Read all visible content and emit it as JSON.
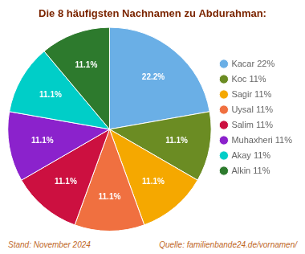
{
  "chart_data": {
    "type": "pie",
    "title": "Die 8 häufigsten Nachnamen zu Abdurahman:",
    "categories": [
      "Kacar 22%",
      "Koc 11%",
      "Sagir 11%",
      "Uysal 11%",
      "Salim 11%",
      "Muhaxheri 11%",
      "Akay 11%",
      "Alkin 11%"
    ],
    "values": [
      22.2,
      11.1,
      11.1,
      11.1,
      11.1,
      11.1,
      11.1,
      11.1
    ],
    "value_labels": [
      "22.2%",
      "11.1%",
      "11.1%",
      "11.1%",
      "11.1%",
      "11.1%",
      "11.1%",
      "11.1%"
    ],
    "data_labels": true,
    "colors": [
      "#6AAFE6",
      "#6B8C23",
      "#F5A800",
      "#F07040",
      "#CC1040",
      "#8B22CC",
      "#00CEC8",
      "#2D7A2D"
    ],
    "legend": "right",
    "annotations": [
      "Stand: November 2024",
      "Quelle: familienbande24.de/vornamen/"
    ]
  }
}
